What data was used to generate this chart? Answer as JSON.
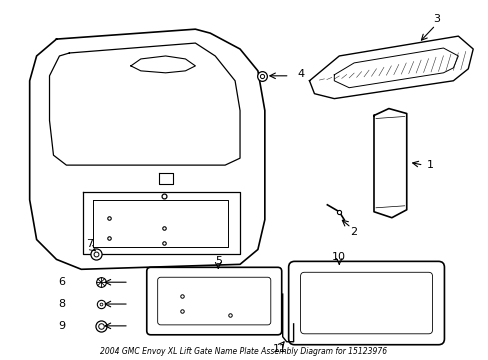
{
  "title": "2004 GMC Envoy XL Lift Gate Name Plate Assembly Diagram for 15123976",
  "bg_color": "#ffffff",
  "line_color": "#000000",
  "label_color": "#000000",
  "fig_width": 4.89,
  "fig_height": 3.6,
  "dpi": 100
}
